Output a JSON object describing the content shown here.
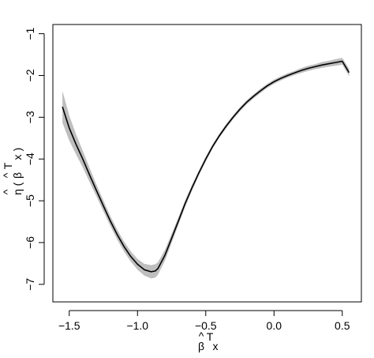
{
  "chart_data": {
    "type": "line",
    "title": "",
    "xlabel": {
      "base": "β",
      "hat": "^",
      "superscript": "T",
      "variable": "x"
    },
    "ylabel": {
      "base": "η",
      "hat": "^",
      "open_paren": "(",
      "inner_base": "β",
      "inner_hat": "^",
      "superscript": "T",
      "variable": "x",
      "close_paren": ")"
    },
    "xlim": [
      -1.62,
      0.64
    ],
    "ylim": [
      -7.42,
      -0.78
    ],
    "xticks": [
      -1.5,
      -1.0,
      -0.5,
      0.0,
      0.5
    ],
    "xtick_labels": [
      "−1.5",
      "−1.0",
      "−0.5",
      "0.0",
      "0.5"
    ],
    "yticks": [
      -7,
      -6,
      -5,
      -4,
      -3,
      -2,
      -1
    ],
    "ytick_labels": [
      "−7",
      "−6",
      "−5",
      "−4",
      "−3",
      "−2",
      "−1"
    ],
    "line_color": "#000000",
    "band_color": "#bebebe",
    "x": [
      -1.55,
      -1.5,
      -1.45,
      -1.4,
      -1.35,
      -1.3,
      -1.25,
      -1.2,
      -1.15,
      -1.1,
      -1.05,
      -1.0,
      -0.95,
      -0.9,
      -0.87,
      -0.85,
      -0.8,
      -0.75,
      -0.7,
      -0.65,
      -0.6,
      -0.55,
      -0.5,
      -0.45,
      -0.4,
      -0.35,
      -0.3,
      -0.25,
      -0.2,
      -0.15,
      -0.1,
      -0.05,
      0.0,
      0.05,
      0.1,
      0.15,
      0.2,
      0.25,
      0.3,
      0.35,
      0.4,
      0.45,
      0.5,
      0.55
    ],
    "series": [
      {
        "values": [
          -2.75,
          -3.26,
          -3.65,
          -4.01,
          -4.39,
          -4.76,
          -5.12,
          -5.48,
          -5.8,
          -6.09,
          -6.33,
          -6.52,
          -6.65,
          -6.7,
          -6.68,
          -6.62,
          -6.31,
          -5.9,
          -5.48,
          -5.06,
          -4.68,
          -4.33,
          -4.0,
          -3.7,
          -3.44,
          -3.21,
          -3.0,
          -2.81,
          -2.64,
          -2.5,
          -2.37,
          -2.25,
          -2.15,
          -2.07,
          -2.0,
          -1.94,
          -1.88,
          -1.83,
          -1.79,
          -1.75,
          -1.72,
          -1.69,
          -1.66,
          -1.93
        ]
      }
    ],
    "band_halfwidth": [
      0.38,
      0.3,
      0.24,
      0.2,
      0.17,
      0.14,
      0.13,
      0.12,
      0.12,
      0.12,
      0.12,
      0.13,
      0.14,
      0.16,
      0.16,
      0.15,
      0.13,
      0.11,
      0.09,
      0.08,
      0.07,
      0.06,
      0.06,
      0.05,
      0.05,
      0.05,
      0.05,
      0.05,
      0.05,
      0.05,
      0.05,
      0.05,
      0.05,
      0.05,
      0.05,
      0.05,
      0.06,
      0.06,
      0.06,
      0.07,
      0.07,
      0.08,
      0.08,
      0.09
    ]
  }
}
